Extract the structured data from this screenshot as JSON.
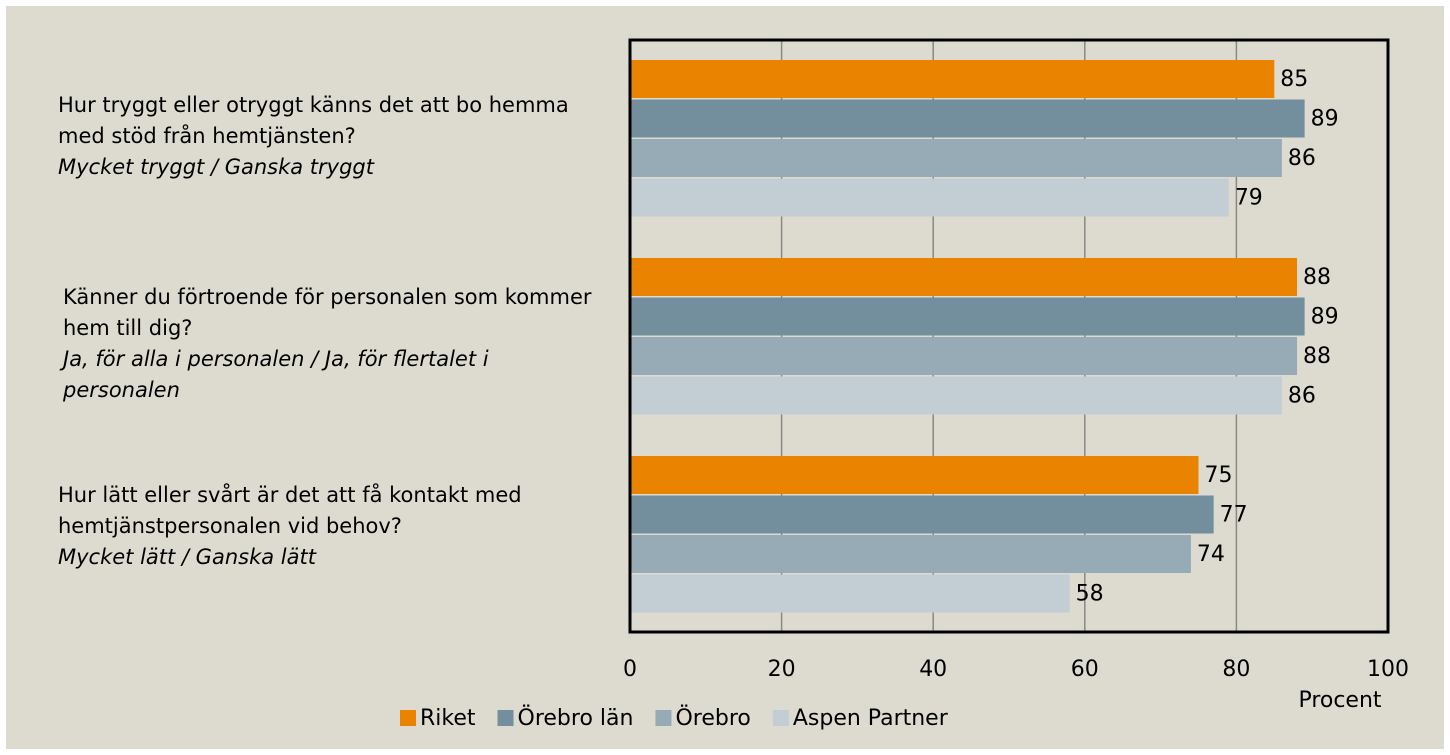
{
  "chart_data": {
    "type": "bar",
    "orientation": "horizontal",
    "categories": [
      "Hur tryggt eller otryggt känns det att bo hemma med stöd från hemtjänsten?",
      "Känner du förtroende för personalen som kommer hem till dig?",
      "Hur lätt eller svårt är det att få kontakt med hemtjänstpersonalen vid behov?"
    ],
    "category_answers": [
      "Mycket tryggt / Ganska tryggt",
      "Ja, för alla i personalen / Ja, för flertalet i personalen",
      "Mycket lätt / Ganska lätt"
    ],
    "series": [
      {
        "name": "Riket",
        "color": "#e98300",
        "values": [
          85,
          88,
          75
        ]
      },
      {
        "name": "Örebro län",
        "color": "#738f9d",
        "values": [
          89,
          89,
          77
        ]
      },
      {
        "name": "Örebro",
        "color": "#97abb6",
        "values": [
          86,
          88,
          74
        ]
      },
      {
        "name": "Aspen Partner",
        "color": "#c3ced4",
        "values": [
          79,
          86,
          58
        ]
      }
    ],
    "xlabel": "Procent",
    "xlim": [
      0,
      100
    ],
    "xticks": [
      0,
      20,
      40,
      60,
      80,
      100
    ],
    "grid": true,
    "legend": "bottom"
  }
}
